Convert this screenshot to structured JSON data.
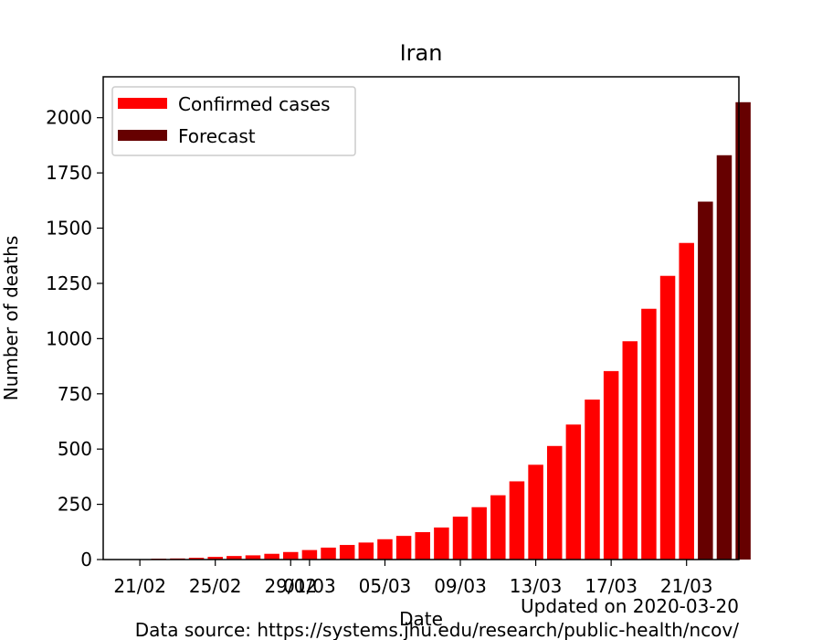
{
  "chart_data": {
    "type": "bar",
    "title": "Iran",
    "xlabel": "Date",
    "ylabel": "Number of deaths",
    "ylim": [
      0,
      2185
    ],
    "yticks": [
      0,
      250,
      500,
      750,
      1000,
      1250,
      1500,
      1750,
      2000
    ],
    "x_tick_labels": [
      {
        "label": "21/02",
        "index": 1
      },
      {
        "label": "25/02",
        "index": 5
      },
      {
        "label": "29/02",
        "index": 9
      },
      {
        "label": "01/03",
        "index": 10
      },
      {
        "label": "05/03",
        "index": 14
      },
      {
        "label": "09/03",
        "index": 18
      },
      {
        "label": "13/03",
        "index": 22
      },
      {
        "label": "17/03",
        "index": 26
      },
      {
        "label": "21/03",
        "index": 30
      }
    ],
    "legend_position": "top-left",
    "series": [
      {
        "name": "Confirmed cases",
        "color": "#ff0000",
        "start_index": 0,
        "values": [
          0,
          2,
          4,
          5,
          8,
          12,
          16,
          19,
          26,
          34,
          43,
          54,
          66,
          77,
          92,
          107,
          124,
          145,
          194,
          237,
          291,
          354,
          429,
          514,
          611,
          724,
          853,
          988,
          1135,
          1284,
          1433
        ]
      },
      {
        "name": "Forecast",
        "color": "#660000",
        "start_index": 31,
        "values": [
          1620,
          1830,
          2070
        ]
      }
    ],
    "annotations": [
      "Updated on 2020-03-20",
      "Data source: https://systems.jhu.edu/research/public-health/ncov/"
    ]
  }
}
